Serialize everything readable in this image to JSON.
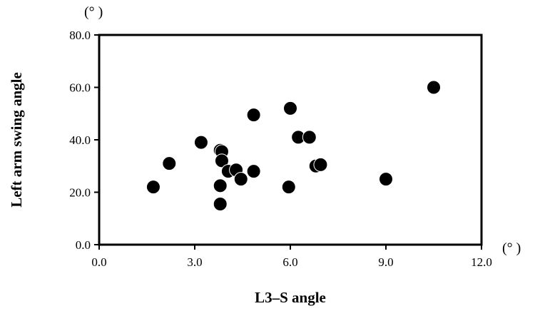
{
  "chart_data": {
    "type": "scatter",
    "xlabel": "L3–S angle",
    "ylabel": "Left arm swing angle",
    "x_unit": "(° )",
    "y_unit": "(° )",
    "xlim": [
      0,
      12
    ],
    "ylim": [
      0,
      80
    ],
    "xticks": [
      "0.0",
      "3.0",
      "6.0",
      "9.0",
      "12.0"
    ],
    "yticks": [
      "0.0",
      "20.0",
      "40.0",
      "60.0",
      "80.0"
    ],
    "grid": false,
    "marker_color": "#000000",
    "points": [
      {
        "x": 1.7,
        "y": 22.0
      },
      {
        "x": 2.2,
        "y": 31.0
      },
      {
        "x": 3.2,
        "y": 39.0
      },
      {
        "x": 3.8,
        "y": 36.0
      },
      {
        "x": 3.85,
        "y": 35.5
      },
      {
        "x": 3.85,
        "y": 32.0
      },
      {
        "x": 3.8,
        "y": 22.5
      },
      {
        "x": 3.8,
        "y": 15.5
      },
      {
        "x": 4.05,
        "y": 28.0
      },
      {
        "x": 4.3,
        "y": 28.5
      },
      {
        "x": 4.45,
        "y": 25.0
      },
      {
        "x": 4.85,
        "y": 28.0
      },
      {
        "x": 4.85,
        "y": 49.5
      },
      {
        "x": 6.0,
        "y": 52.0
      },
      {
        "x": 5.95,
        "y": 22.0
      },
      {
        "x": 6.25,
        "y": 41.0
      },
      {
        "x": 6.6,
        "y": 41.0
      },
      {
        "x": 6.8,
        "y": 30.0
      },
      {
        "x": 6.95,
        "y": 30.5
      },
      {
        "x": 9.0,
        "y": 25.0
      },
      {
        "x": 10.5,
        "y": 60.0
      }
    ]
  }
}
